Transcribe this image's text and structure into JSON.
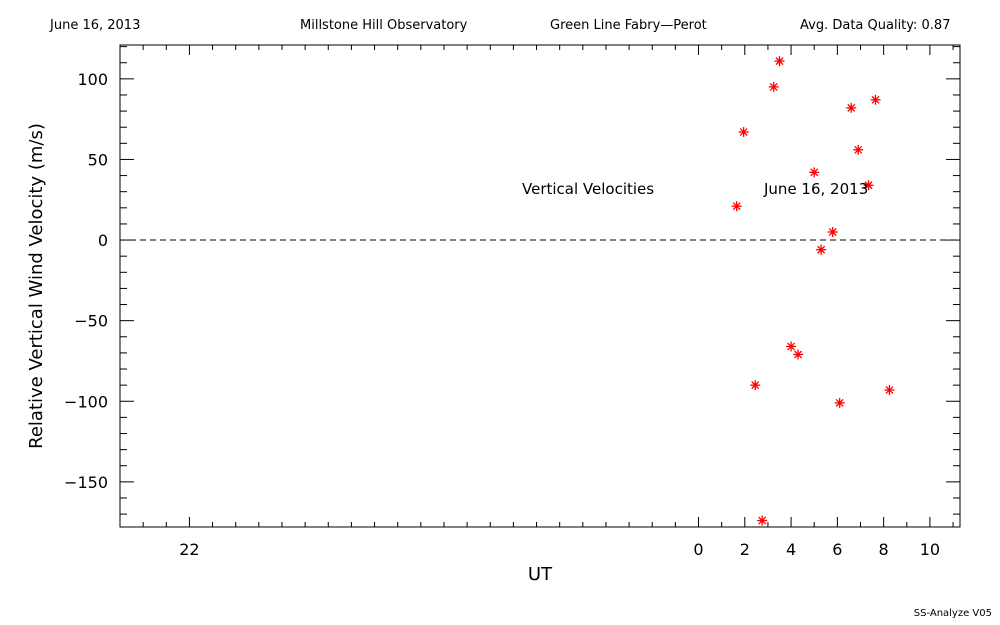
{
  "header": {
    "date": "June 16, 2013",
    "observatory": "Millstone Hill Observatory",
    "instrument": "Green Line Fabry—Perot",
    "quality": "Avg. Data Quality: 0.87"
  },
  "footer": {
    "version": "SS-Analyze V05"
  },
  "chart_data": {
    "type": "scatter",
    "xlabel": "UT",
    "ylabel": "Relative Vertical Wind Velocity (m/s)",
    "xlim": [
      -25,
      11.3
    ],
    "ylim": [
      -178,
      121
    ],
    "x_ticks": [
      -22,
      0,
      2,
      4,
      6,
      8,
      10
    ],
    "x_tick_labels": [
      "22",
      "0",
      "2",
      "4",
      "6",
      "8",
      "10"
    ],
    "y_ticks": [
      -150,
      -100,
      -50,
      0,
      50,
      100
    ],
    "y_tick_labels": [
      "−150",
      "−100",
      "−50",
      "0",
      "50",
      "100"
    ],
    "annotation_left": "Vertical Velocities",
    "annotation_right": "June 16, 2013",
    "marker_color": "#ff0000",
    "zero_line": "dashed",
    "series": [
      {
        "points": [
          [
            1.65,
            21
          ],
          [
            1.95,
            67
          ],
          [
            2.45,
            -90
          ],
          [
            2.75,
            -174
          ],
          [
            3.25,
            95
          ],
          [
            3.5,
            111
          ],
          [
            4.0,
            -66
          ],
          [
            4.3,
            -71
          ],
          [
            5.0,
            42
          ],
          [
            5.3,
            -6
          ],
          [
            5.8,
            5
          ],
          [
            6.1,
            -101
          ],
          [
            6.6,
            82
          ],
          [
            6.9,
            56
          ],
          [
            7.35,
            34
          ],
          [
            7.65,
            87
          ],
          [
            8.25,
            -93
          ]
        ]
      }
    ]
  }
}
